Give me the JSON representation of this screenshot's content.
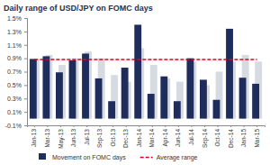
{
  "chart_data": {
    "type": "bar",
    "title": "Daily range of USD/JPY on FOMC days",
    "categories": [
      "Jan-13",
      "Mar-13",
      "May-13",
      "Jun-13",
      "Jul-13",
      "Sep-13",
      "Oct-13",
      "Dec-13",
      "Jan-14",
      "Mar-14",
      "Apr-14",
      "Jun-14",
      "Jul-14",
      "Sep-14",
      "Oct-14",
      "Dec-14",
      "Jan-15",
      "Mar-15"
    ],
    "series": [
      {
        "color": "#d6dae1",
        "values": [
          0.88,
          0.95,
          0.8,
          0.9,
          1.0,
          0.9,
          0.65,
          0.55,
          1.05,
          0.8,
          0.6,
          0.55,
          0.85,
          0.5,
          0.7,
          0.85,
          0.95,
          0.85
        ]
      },
      {
        "name": "Movement on FOMC days",
        "color": "#1f2d5c",
        "values": [
          0.89,
          0.93,
          0.69,
          0.87,
          0.97,
          0.6,
          0.26,
          0.76,
          1.4,
          0.37,
          0.63,
          0.26,
          0.9,
          0.58,
          0.28,
          1.34,
          0.61,
          0.52
        ]
      },
      {
        "name": "Average range",
        "type": "line",
        "line_style": "dashed",
        "color": "#e3001b",
        "values": [
          0.88,
          0.88,
          0.88,
          0.88,
          0.88,
          0.88,
          0.88,
          0.88,
          0.88,
          0.88,
          0.88,
          0.88,
          0.88,
          0.88,
          0.88,
          0.88,
          0.88,
          0.88
        ]
      }
    ],
    "ylim": [
      -0.1,
      1.5
    ],
    "yticks": [
      {
        "value": -0.1,
        "label": "-0.1%"
      },
      {
        "value": 0.1,
        "label": "0.1%"
      },
      {
        "value": 0.3,
        "label": "0.3%"
      },
      {
        "value": 0.5,
        "label": "0.5%"
      },
      {
        "value": 0.7,
        "label": "0.7%"
      },
      {
        "value": 0.9,
        "label": "0.9%"
      },
      {
        "value": 1.1,
        "label": "1.1%"
      },
      {
        "value": 1.3,
        "label": "1.3%"
      },
      {
        "value": 1.5,
        "label": "1.5%"
      }
    ],
    "grid": false,
    "legend": "bottom"
  }
}
